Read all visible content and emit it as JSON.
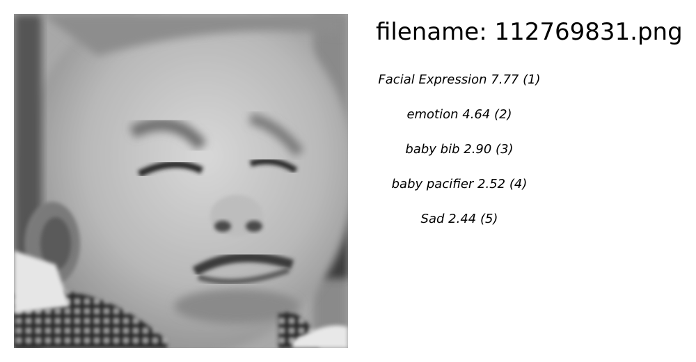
{
  "image": {
    "description_icon": "photo-baby-crying-grayscale"
  },
  "header": {
    "filename_text": "filename: 112769831.png"
  },
  "labels": [
    {
      "text": "Facial Expression  7.77 (1)"
    },
    {
      "text": "emotion  4.64 (2)"
    },
    {
      "text": "baby bib  2.90 (3)"
    },
    {
      "text": "baby pacifier  2.52 (4)"
    },
    {
      "text": "Sad  2.44 (5)"
    }
  ]
}
